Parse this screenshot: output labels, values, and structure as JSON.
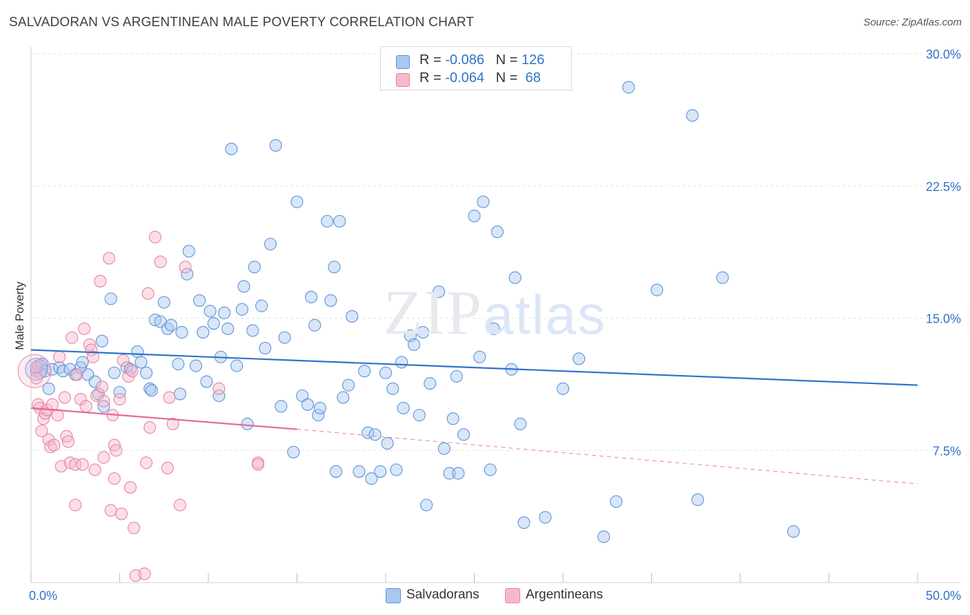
{
  "title": "SALVADORAN VS ARGENTINEAN MALE POVERTY CORRELATION CHART",
  "source": "Source: ZipAtlas.com",
  "watermark": {
    "zip": "ZIP",
    "atlas": "atlas"
  },
  "legend": {
    "rows": [
      {
        "r_label": "R = ",
        "r_value": "-0.086",
        "n_label": "N = ",
        "n_value": "126",
        "color": "#a9c8f0"
      },
      {
        "r_label": "R = ",
        "r_value": "-0.064",
        "n_label": "N = ",
        "n_value": " 68",
        "color": "#f6b8cc"
      }
    ]
  },
  "bottom_legend": [
    {
      "label": "Salvadorans",
      "color": "#a9c8f0"
    },
    {
      "label": "Argentineans",
      "color": "#f6b8cc"
    }
  ],
  "chart_data": {
    "type": "scatter",
    "ylabel": "Male Poverty",
    "xlabel": "",
    "xlim": [
      0,
      50
    ],
    "ylim": [
      0,
      30
    ],
    "x_tick_labels": [
      {
        "value": 0,
        "label": "0.0%"
      },
      {
        "value": 50,
        "label": "50.0%"
      }
    ],
    "y_tick_labels": [
      {
        "value": 7.5,
        "label": "7.5%"
      },
      {
        "value": 15,
        "label": "15.0%"
      },
      {
        "value": 22.5,
        "label": "22.5%"
      },
      {
        "value": 30,
        "label": "30.0%"
      }
    ],
    "grid": true,
    "series": [
      {
        "name": "Salvadorans",
        "color": "#5b93d8",
        "fill": "#a9c8f0",
        "trend": {
          "x": [
            0,
            50
          ],
          "y": [
            13.2,
            11.2
          ],
          "style": "solid"
        },
        "points": [
          [
            0.3,
            12.0
          ],
          [
            0.4,
            12.3
          ],
          [
            0.5,
            11.9
          ],
          [
            0.6,
            12.4
          ],
          [
            0.8,
            12.0
          ],
          [
            1.0,
            11.0
          ],
          [
            1.2,
            12.1
          ],
          [
            1.6,
            12.2
          ],
          [
            1.8,
            12.0
          ],
          [
            2.2,
            12.1
          ],
          [
            2.5,
            11.8
          ],
          [
            2.8,
            12.2
          ],
          [
            2.9,
            12.5
          ],
          [
            3.2,
            11.8
          ],
          [
            3.6,
            11.4
          ],
          [
            3.8,
            10.7
          ],
          [
            4.0,
            13.7
          ],
          [
            4.1,
            10.0
          ],
          [
            4.5,
            16.1
          ],
          [
            4.7,
            11.9
          ],
          [
            5.0,
            10.8
          ],
          [
            5.4,
            12.2
          ],
          [
            5.6,
            12.1
          ],
          [
            6.0,
            13.1
          ],
          [
            6.2,
            12.5
          ],
          [
            6.5,
            11.9
          ],
          [
            6.7,
            11.0
          ],
          [
            6.8,
            10.9
          ],
          [
            7.0,
            14.9
          ],
          [
            7.3,
            14.8
          ],
          [
            7.5,
            15.9
          ],
          [
            7.7,
            14.4
          ],
          [
            7.9,
            14.6
          ],
          [
            8.3,
            12.4
          ],
          [
            8.4,
            10.7
          ],
          [
            8.5,
            14.2
          ],
          [
            8.8,
            17.5
          ],
          [
            8.9,
            18.8
          ],
          [
            9.3,
            12.3
          ],
          [
            9.5,
            16.0
          ],
          [
            9.7,
            14.2
          ],
          [
            9.9,
            11.4
          ],
          [
            10.1,
            15.4
          ],
          [
            10.3,
            14.7
          ],
          [
            10.6,
            10.6
          ],
          [
            10.7,
            12.8
          ],
          [
            10.9,
            15.3
          ],
          [
            11.1,
            14.4
          ],
          [
            11.3,
            24.6
          ],
          [
            11.6,
            12.3
          ],
          [
            11.9,
            15.5
          ],
          [
            12.0,
            16.8
          ],
          [
            12.2,
            9.0
          ],
          [
            12.5,
            14.3
          ],
          [
            12.6,
            17.9
          ],
          [
            13.0,
            15.7
          ],
          [
            13.2,
            13.3
          ],
          [
            13.5,
            19.2
          ],
          [
            13.8,
            24.8
          ],
          [
            14.1,
            10.0
          ],
          [
            14.3,
            13.9
          ],
          [
            14.8,
            7.4
          ],
          [
            15.0,
            21.6
          ],
          [
            15.3,
            10.6
          ],
          [
            15.6,
            10.1
          ],
          [
            15.8,
            16.2
          ],
          [
            16.0,
            14.6
          ],
          [
            16.2,
            9.5
          ],
          [
            16.3,
            9.9
          ],
          [
            16.7,
            20.5
          ],
          [
            16.9,
            16.0
          ],
          [
            17.1,
            17.9
          ],
          [
            17.2,
            6.3
          ],
          [
            17.4,
            20.5
          ],
          [
            17.6,
            10.5
          ],
          [
            17.9,
            11.2
          ],
          [
            18.1,
            15.1
          ],
          [
            18.5,
            6.3
          ],
          [
            18.8,
            12.0
          ],
          [
            19.0,
            8.5
          ],
          [
            19.2,
            5.9
          ],
          [
            19.4,
            8.4
          ],
          [
            19.7,
            6.3
          ],
          [
            20.0,
            11.9
          ],
          [
            20.1,
            7.9
          ],
          [
            20.4,
            11.0
          ],
          [
            20.6,
            6.4
          ],
          [
            20.9,
            12.5
          ],
          [
            21.0,
            9.9
          ],
          [
            21.4,
            14.0
          ],
          [
            21.6,
            13.5
          ],
          [
            21.9,
            9.5
          ],
          [
            22.1,
            14.2
          ],
          [
            22.3,
            4.4
          ],
          [
            22.5,
            11.3
          ],
          [
            23.0,
            16.5
          ],
          [
            23.3,
            7.6
          ],
          [
            23.6,
            6.2
          ],
          [
            23.8,
            9.3
          ],
          [
            24.0,
            11.7
          ],
          [
            24.1,
            6.2
          ],
          [
            24.4,
            8.4
          ],
          [
            25.0,
            20.8
          ],
          [
            25.3,
            12.8
          ],
          [
            25.5,
            21.6
          ],
          [
            25.9,
            6.4
          ],
          [
            26.1,
            14.4
          ],
          [
            26.3,
            19.9
          ],
          [
            27.1,
            12.1
          ],
          [
            27.3,
            17.3
          ],
          [
            27.6,
            9.0
          ],
          [
            27.8,
            3.4
          ],
          [
            29.0,
            3.7
          ],
          [
            30.0,
            11.0
          ],
          [
            30.9,
            12.7
          ],
          [
            32.3,
            2.6
          ],
          [
            33.0,
            4.6
          ],
          [
            33.7,
            28.1
          ],
          [
            35.3,
            16.6
          ],
          [
            37.3,
            26.5
          ],
          [
            37.6,
            4.7
          ],
          [
            39.0,
            17.3
          ],
          [
            43.0,
            2.9
          ]
        ]
      },
      {
        "name": "Argentineans",
        "color": "#e8839e",
        "fill": "#f6b8cc",
        "trend": {
          "x": [
            0,
            15
          ],
          "y": [
            9.9,
            8.7
          ],
          "style": "solid",
          "dashed_to": [
            50,
            5.6
          ]
        },
        "points": [
          [
            0.3,
            12.2
          ],
          [
            0.3,
            11.6
          ],
          [
            0.4,
            10.1
          ],
          [
            0.5,
            9.9
          ],
          [
            0.6,
            8.6
          ],
          [
            0.7,
            9.3
          ],
          [
            0.8,
            9.6
          ],
          [
            0.9,
            9.8
          ],
          [
            1.0,
            8.1
          ],
          [
            1.1,
            7.7
          ],
          [
            1.2,
            10.1
          ],
          [
            1.3,
            7.8
          ],
          [
            1.5,
            9.5
          ],
          [
            1.6,
            12.8
          ],
          [
            1.7,
            6.6
          ],
          [
            1.9,
            10.5
          ],
          [
            2.0,
            8.3
          ],
          [
            2.1,
            8.0
          ],
          [
            2.2,
            6.8
          ],
          [
            2.3,
            13.9
          ],
          [
            2.5,
            6.7
          ],
          [
            2.5,
            4.4
          ],
          [
            2.6,
            11.8
          ],
          [
            2.8,
            10.4
          ],
          [
            2.9,
            6.7
          ],
          [
            3.0,
            14.4
          ],
          [
            3.1,
            10.0
          ],
          [
            3.3,
            13.5
          ],
          [
            3.4,
            13.2
          ],
          [
            3.5,
            12.8
          ],
          [
            3.6,
            6.4
          ],
          [
            3.7,
            10.6
          ],
          [
            3.9,
            17.1
          ],
          [
            4.0,
            11.1
          ],
          [
            4.1,
            10.3
          ],
          [
            4.1,
            7.1
          ],
          [
            4.4,
            18.4
          ],
          [
            4.5,
            4.1
          ],
          [
            4.6,
            9.5
          ],
          [
            4.7,
            5.9
          ],
          [
            4.7,
            7.8
          ],
          [
            4.8,
            7.5
          ],
          [
            5.0,
            10.4
          ],
          [
            5.1,
            3.9
          ],
          [
            5.2,
            12.6
          ],
          [
            5.5,
            11.7
          ],
          [
            5.6,
            5.4
          ],
          [
            5.7,
            12.0
          ],
          [
            5.8,
            3.1
          ],
          [
            5.9,
            0.4
          ],
          [
            6.4,
            0.5
          ],
          [
            6.5,
            6.8
          ],
          [
            6.6,
            16.4
          ],
          [
            6.7,
            8.8
          ],
          [
            7.0,
            19.6
          ],
          [
            7.3,
            18.2
          ],
          [
            7.7,
            6.5
          ],
          [
            7.8,
            10.5
          ],
          [
            8.0,
            9.0
          ],
          [
            8.4,
            4.4
          ],
          [
            8.7,
            17.9
          ],
          [
            10.6,
            11.0
          ],
          [
            12.8,
            6.8
          ],
          [
            12.8,
            6.7
          ]
        ]
      }
    ]
  }
}
